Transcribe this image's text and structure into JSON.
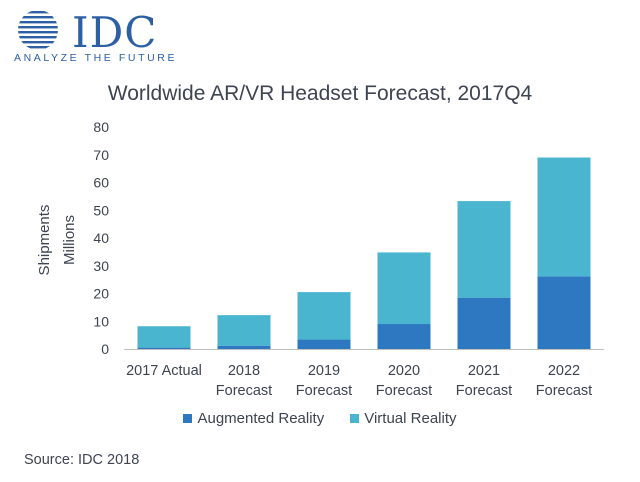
{
  "logo": {
    "wordmark": "IDC",
    "tagline": "ANALYZE THE FUTURE"
  },
  "source": "Source: IDC 2018",
  "colors": {
    "augmented": "#2e78c2",
    "virtual": "#4ab5cf",
    "brand": "#2c5fa3",
    "axis": "#bfbfbf",
    "text": "#3d4452"
  },
  "chart_data": {
    "type": "bar",
    "stacked": true,
    "title": "Worldwide AR/VR Headset Forecast, 2017Q4",
    "ylabel": [
      "Shipments",
      "Millions"
    ],
    "xlabel": "",
    "ylim": [
      0,
      80
    ],
    "yticks": [
      0,
      10,
      20,
      30,
      40,
      50,
      60,
      70,
      80
    ],
    "grid": false,
    "legend_position": "bottom",
    "categories": [
      [
        "2017 Actual"
      ],
      [
        "2018",
        "Forecast"
      ],
      [
        "2019",
        "Forecast"
      ],
      [
        "2020",
        "Forecast"
      ],
      [
        "2021",
        "Forecast"
      ],
      [
        "2022",
        "Forecast"
      ]
    ],
    "series": [
      {
        "name": "Augmented Reality",
        "color": "#2e78c2",
        "values": [
          0.5,
          1.2,
          3.4,
          9.0,
          18.5,
          26.2
        ]
      },
      {
        "name": "Virtual Reality",
        "color": "#4ab5cf",
        "values": [
          7.7,
          11.0,
          17.1,
          25.8,
          34.8,
          42.8
        ]
      }
    ]
  }
}
